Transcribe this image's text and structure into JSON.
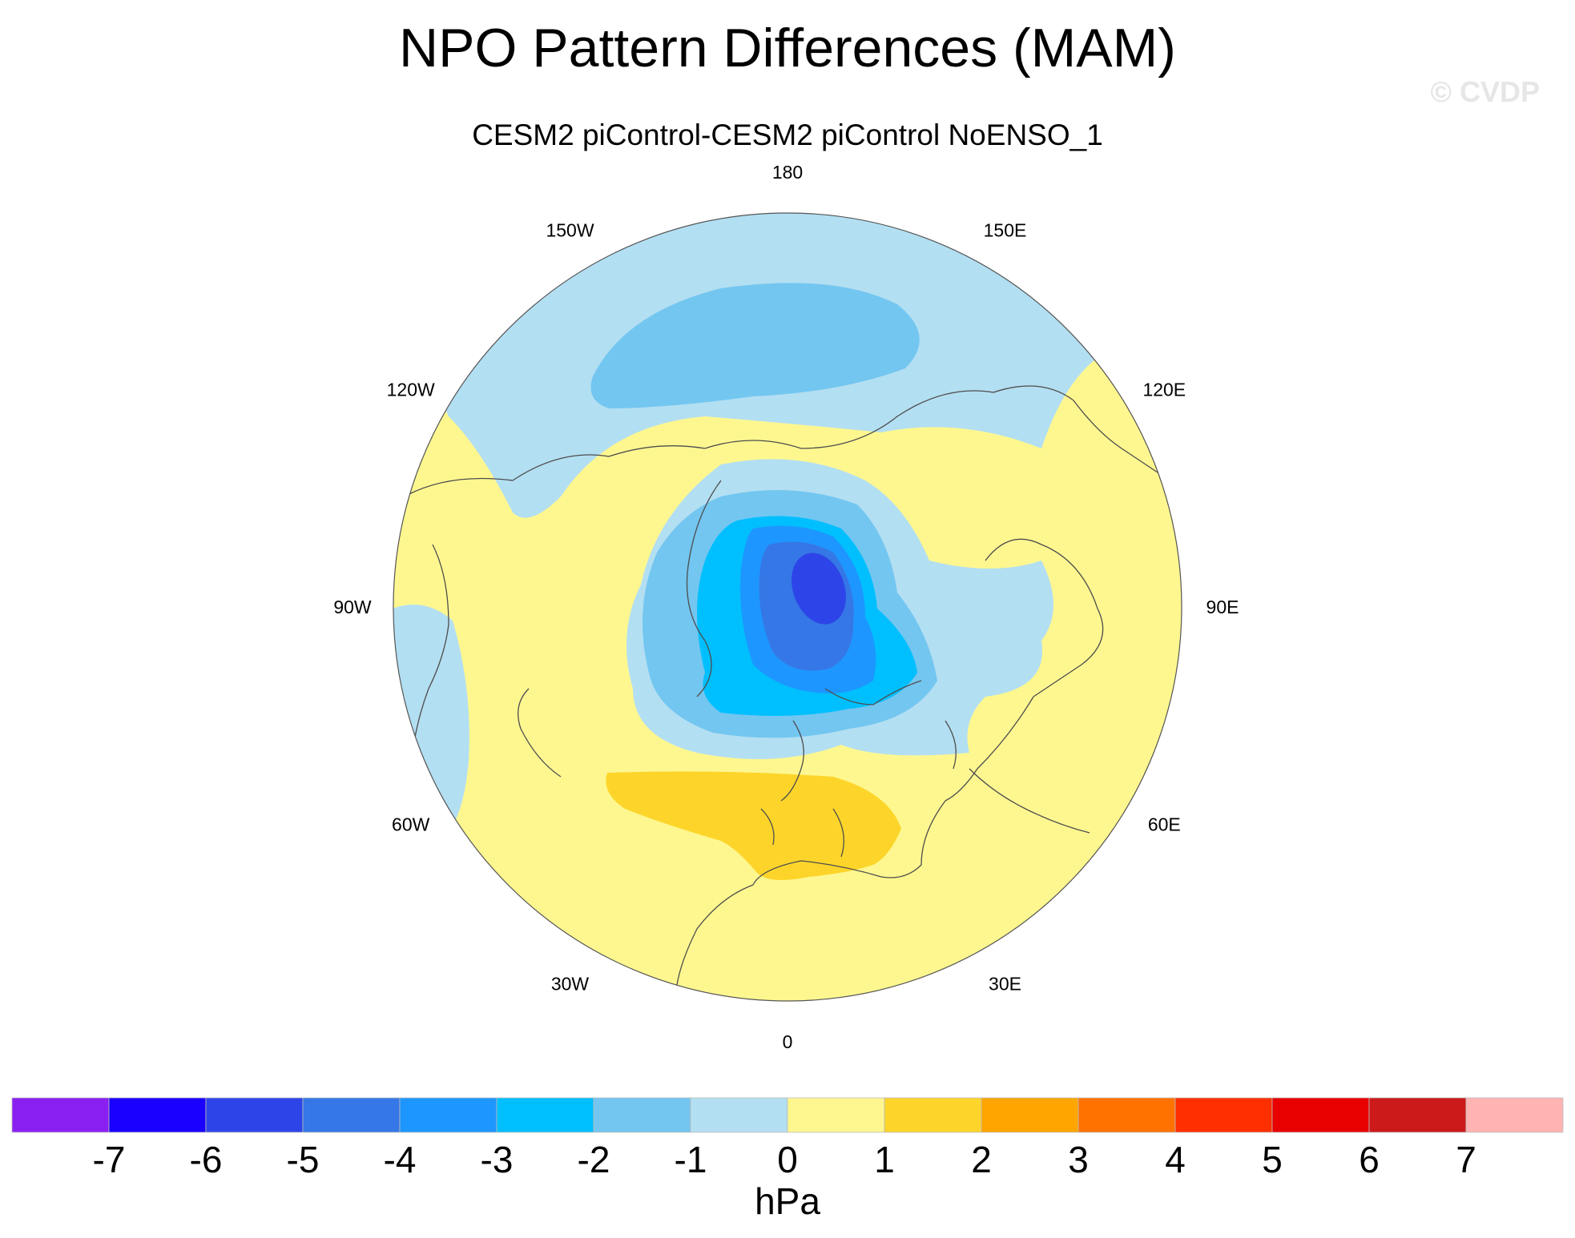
{
  "title": "NPO Pattern Differences (MAM)",
  "subtitle": "CESM2 piControl-CESM2 piControl NoENSO_1",
  "watermark": "© CVDP",
  "map": {
    "projection": "north-polar-stereographic",
    "field": "sea level pressure difference",
    "longitude_labels": [
      "180",
      "150E",
      "120E",
      "90E",
      "60E",
      "30E",
      "0",
      "30W",
      "60W",
      "90W",
      "120W",
      "150W"
    ],
    "anomaly_regions": [
      {
        "name": "polar-low-center",
        "level_hpa": -5,
        "location": "Arctic Ocean near North Pole"
      },
      {
        "name": "north-pacific-low",
        "level_hpa": -2,
        "location": "North Pacific"
      },
      {
        "name": "mid-atlantic-high",
        "level_hpa": 1,
        "location": "Atlantic / Mediterranean"
      }
    ]
  },
  "colorbar": {
    "units": "hPa",
    "ticks": [
      "-7",
      "-6",
      "-5",
      "-4",
      "-3",
      "-2",
      "-1",
      "0",
      "1",
      "2",
      "3",
      "4",
      "5",
      "6",
      "7"
    ],
    "colors": [
      "#8a1ff2",
      "#1a00ff",
      "#2d45e8",
      "#3577e6",
      "#1e96ff",
      "#00bfff",
      "#73c6f0",
      "#b3dff2",
      "#fef790",
      "#fdd52a",
      "#ffa500",
      "#ff7200",
      "#ff2f00",
      "#e80000",
      "#cc1a1a",
      "#ffb3b3"
    ]
  },
  "colors": {
    "background": "#ffffff",
    "coastline": "#4d4d4d",
    "watermark": "#e6e6e6"
  }
}
